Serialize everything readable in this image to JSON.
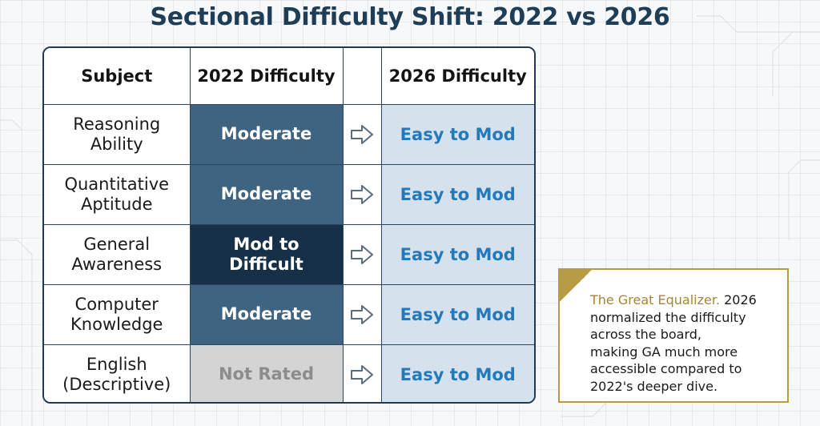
{
  "title": "Sectional Difficulty Shift: 2022 vs 2026",
  "table": {
    "headers": {
      "subject": "Subject",
      "d2022": "2022 Difficulty",
      "arrow": "",
      "d2026": "2026 Difficulty"
    },
    "rows": [
      {
        "subject_line1": "Reasoning",
        "subject_line2": "Ability",
        "d2022_line1": "Moderate",
        "d2022_line2": "",
        "d2022_level": "moderate",
        "d2026": "Easy to Mod"
      },
      {
        "subject_line1": "Quantitative",
        "subject_line2": "Aptitude",
        "d2022_line1": "Moderate",
        "d2022_line2": "",
        "d2022_level": "moderate",
        "d2026": "Easy to Mod"
      },
      {
        "subject_line1": "General",
        "subject_line2": "Awareness",
        "d2022_line1": "Mod to",
        "d2022_line2": "Difficult",
        "d2022_level": "hard",
        "d2026": "Easy to Mod"
      },
      {
        "subject_line1": "Computer",
        "subject_line2": "Knowledge",
        "d2022_line1": "Moderate",
        "d2022_line2": "",
        "d2022_level": "moderate",
        "d2026": "Easy to Mod"
      },
      {
        "subject_line1": "English",
        "subject_line2": "(Descriptive)",
        "d2022_line1": "Not Rated",
        "d2022_line2": "",
        "d2022_level": "not-rated",
        "d2026": "Easy to Mod"
      }
    ],
    "arrow_icon": "right-arrow-icon",
    "colors": {
      "moderate": "#3f6482",
      "hard": "#163047",
      "not_rated": "#d4d4d4",
      "cell_2026": "#d5e2ee",
      "text_2026": "#2479b8"
    }
  },
  "note": {
    "lead": "The Great Equalizer.",
    "line1_rest": " 2026",
    "line2": "normalized the difficulty",
    "line3": "across the board,",
    "line4": "making GA much more",
    "line5": "accessible compared to",
    "line6": "2022's deeper dive.",
    "accent_color": "#b79b45"
  }
}
